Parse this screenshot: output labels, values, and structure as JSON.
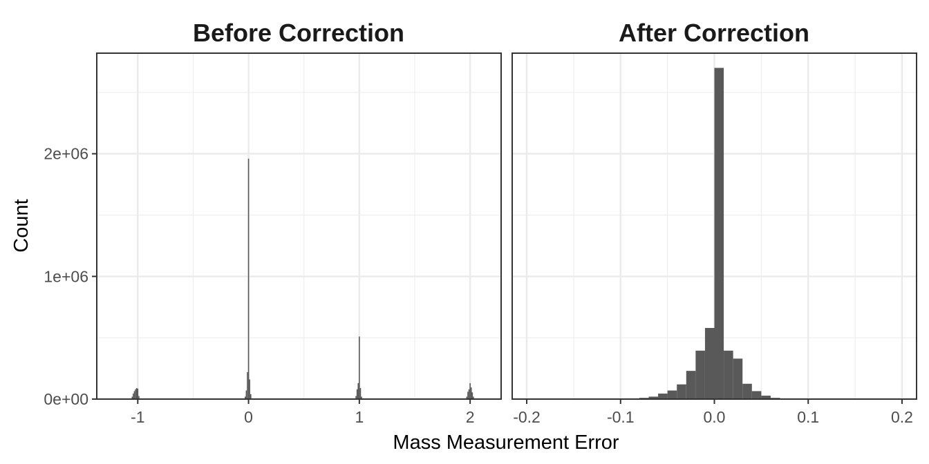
{
  "chart_data": {
    "type": "histogram",
    "xlabel": "Mass Measurement Error",
    "ylabel": "Count",
    "grid": true,
    "colors": {
      "bar": "#595959",
      "grid": "#ebebeb",
      "border": "#333333",
      "background": "#ffffff"
    },
    "y_ticks": [
      {
        "value": 0,
        "label": "0e+00"
      },
      {
        "value": 1000000,
        "label": "1e+06"
      },
      {
        "value": 2000000,
        "label": "2e+06"
      }
    ],
    "ylim": [
      0,
      2820000
    ],
    "panels": [
      {
        "title": "Before Correction",
        "xlim": [
          -1.37,
          2.28
        ],
        "x_ticks": [
          {
            "value": -1,
            "label": "-1"
          },
          {
            "value": 0,
            "label": "0"
          },
          {
            "value": 1,
            "label": "1"
          },
          {
            "value": 2,
            "label": "2"
          }
        ],
        "bin_width": 0.01,
        "bins": [
          {
            "x": -1.05,
            "count": 20000
          },
          {
            "x": -1.04,
            "count": 45000
          },
          {
            "x": -1.03,
            "count": 65000
          },
          {
            "x": -1.02,
            "count": 80000
          },
          {
            "x": -1.01,
            "count": 90000
          },
          {
            "x": -1.0,
            "count": 85000
          },
          {
            "x": -0.99,
            "count": 25000
          },
          {
            "x": -0.03,
            "count": 20000
          },
          {
            "x": -0.02,
            "count": 70000
          },
          {
            "x": -0.01,
            "count": 220000
          },
          {
            "x": 0.0,
            "count": 1960000
          },
          {
            "x": 0.01,
            "count": 160000
          },
          {
            "x": 0.02,
            "count": 40000
          },
          {
            "x": 0.97,
            "count": 25000
          },
          {
            "x": 0.98,
            "count": 80000
          },
          {
            "x": 0.99,
            "count": 130000
          },
          {
            "x": 1.0,
            "count": 510000
          },
          {
            "x": 1.01,
            "count": 90000
          },
          {
            "x": 1.02,
            "count": 20000
          },
          {
            "x": 1.97,
            "count": 20000
          },
          {
            "x": 1.98,
            "count": 60000
          },
          {
            "x": 1.99,
            "count": 80000
          },
          {
            "x": 2.0,
            "count": 130000
          },
          {
            "x": 2.01,
            "count": 95000
          },
          {
            "x": 2.02,
            "count": 55000
          },
          {
            "x": 2.03,
            "count": 20000
          }
        ]
      },
      {
        "title": "After Correction",
        "xlim": [
          -0.2155,
          0.2155
        ],
        "x_ticks": [
          {
            "value": -0.2,
            "label": "-0.2"
          },
          {
            "value": -0.1,
            "label": "-0.1"
          },
          {
            "value": 0.0,
            "label": "0.0"
          },
          {
            "value": 0.1,
            "label": "0.1"
          },
          {
            "value": 0.2,
            "label": "0.2"
          }
        ],
        "bin_width": 0.01,
        "bins": [
          {
            "x": -0.075,
            "count": 10000
          },
          {
            "x": -0.065,
            "count": 20000
          },
          {
            "x": -0.055,
            "count": 45000
          },
          {
            "x": -0.045,
            "count": 70000
          },
          {
            "x": -0.035,
            "count": 120000
          },
          {
            "x": -0.025,
            "count": 230000
          },
          {
            "x": -0.015,
            "count": 395000
          },
          {
            "x": -0.005,
            "count": 580000
          },
          {
            "x": 0.005,
            "count": 2700000
          },
          {
            "x": 0.015,
            "count": 395000
          },
          {
            "x": 0.025,
            "count": 330000
          },
          {
            "x": 0.035,
            "count": 125000
          },
          {
            "x": 0.045,
            "count": 65000
          },
          {
            "x": 0.055,
            "count": 28000
          },
          {
            "x": 0.065,
            "count": 10000
          },
          {
            "x": 0.075,
            "count": 4000
          }
        ]
      }
    ]
  }
}
